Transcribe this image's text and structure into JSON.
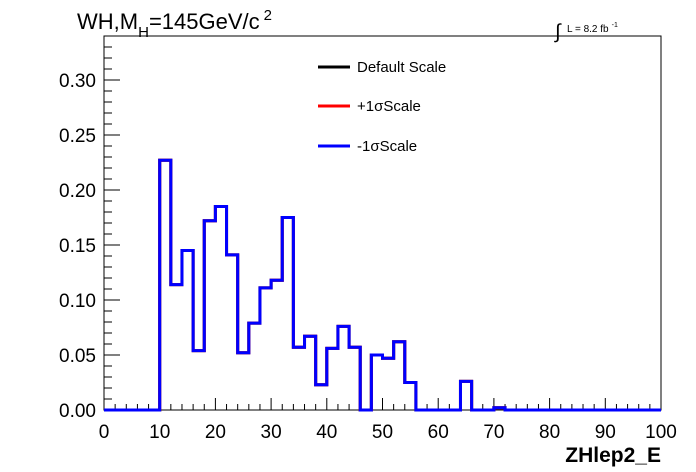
{
  "chart_data": {
    "type": "line",
    "title": {
      "prefix": "WH,M",
      "subscript": "H",
      "middle": "=145GeV/c",
      "superscript": "2"
    },
    "luminosity": {
      "integral_symbol": "∫",
      "text": "L = 8.2 fb",
      "superscript": "-1"
    },
    "xlabel": "ZHlep2_E",
    "xlim": [
      0,
      100
    ],
    "ylim": [
      0,
      0.34
    ],
    "x_ticks": [
      "0",
      "10",
      "20",
      "30",
      "40",
      "50",
      "60",
      "70",
      "80",
      "90",
      "100"
    ],
    "y_ticks": [
      "0.00",
      "0.05",
      "0.10",
      "0.15",
      "0.20",
      "0.25",
      "0.30"
    ],
    "bin_width": 2,
    "bin_edges_start": 0,
    "legend_position": "top-center",
    "series": [
      {
        "name": "Default Scale",
        "color": "#000000",
        "values": [
          0,
          0,
          0,
          0,
          0,
          0.227,
          0.114,
          0.145,
          0.054,
          0.172,
          0.185,
          0.141,
          0.052,
          0.079,
          0.111,
          0.118,
          0.175,
          0.057,
          0.067,
          0.023,
          0.056,
          0.076,
          0.057,
          0,
          0.05,
          0.047,
          0.062,
          0.025,
          0,
          0,
          0,
          0,
          0.026,
          0,
          0,
          0.002,
          0,
          0,
          0,
          0,
          0,
          0,
          0,
          0,
          0,
          0,
          0,
          0,
          0,
          0
        ]
      },
      {
        "name": "+1σScale",
        "color": "#ff0000",
        "values": [
          0,
          0,
          0,
          0,
          0,
          0.227,
          0.114,
          0.145,
          0.054,
          0.172,
          0.185,
          0.141,
          0.052,
          0.079,
          0.111,
          0.118,
          0.175,
          0.057,
          0.067,
          0.023,
          0.056,
          0.076,
          0.057,
          0,
          0.05,
          0.047,
          0.062,
          0.025,
          0,
          0,
          0,
          0,
          0.026,
          0,
          0,
          0.002,
          0,
          0,
          0,
          0,
          0,
          0,
          0,
          0,
          0,
          0,
          0,
          0,
          0,
          0
        ]
      },
      {
        "name": "-1σScale",
        "color": "#0000ff",
        "values": [
          0,
          0,
          0,
          0,
          0,
          0.227,
          0.114,
          0.145,
          0.054,
          0.172,
          0.185,
          0.141,
          0.052,
          0.079,
          0.111,
          0.118,
          0.175,
          0.057,
          0.067,
          0.023,
          0.056,
          0.076,
          0.057,
          0,
          0.05,
          0.047,
          0.062,
          0.025,
          0,
          0,
          0,
          0,
          0.026,
          0,
          0,
          0.002,
          0,
          0,
          0,
          0,
          0,
          0,
          0,
          0,
          0,
          0,
          0,
          0,
          0,
          0
        ]
      }
    ]
  }
}
